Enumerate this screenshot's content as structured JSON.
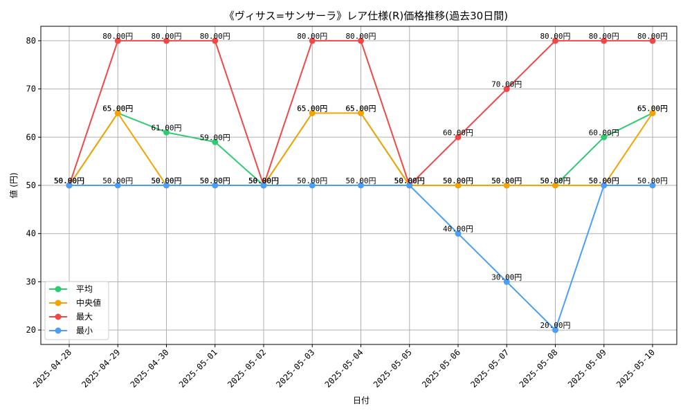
{
  "chart_data": {
    "type": "line",
    "title": "《ヴィサス=サンサーラ》レア仕様(R)価格推移(過去30日間)",
    "xlabel": "日付",
    "ylabel": "値 (円)",
    "categories": [
      "2025-04-28",
      "2025-04-29",
      "2025-04-30",
      "2025-05-01",
      "2025-05-02",
      "2025-05-03",
      "2025-05-04",
      "2025-05-05",
      "2025-05-06",
      "2025-05-07",
      "2025-05-08",
      "2025-05-09",
      "2025-05-10"
    ],
    "ylim": [
      17,
      83
    ],
    "yticks": [
      20,
      30,
      40,
      50,
      60,
      70,
      80
    ],
    "grid": true,
    "legend_position": "lower-left",
    "label_suffix": "円",
    "series": [
      {
        "name": "平均",
        "color": "#2ecc71",
        "values": [
          50,
          65,
          61,
          59,
          50,
          65,
          65,
          50,
          50,
          50,
          50,
          60,
          65
        ]
      },
      {
        "name": "中央値",
        "color": "#f5a300",
        "values": [
          50,
          65,
          50,
          50,
          50,
          65,
          65,
          50,
          50,
          50,
          50,
          50,
          65
        ]
      },
      {
        "name": "最大",
        "color": "#f04747",
        "values": [
          50,
          80,
          80,
          80,
          50,
          80,
          80,
          50,
          60,
          70,
          80,
          80,
          80
        ]
      },
      {
        "name": "最小",
        "color": "#4a9ef5",
        "values": [
          50,
          50,
          50,
          50,
          50,
          50,
          50,
          50,
          40,
          30,
          20,
          50,
          50
        ]
      }
    ]
  }
}
